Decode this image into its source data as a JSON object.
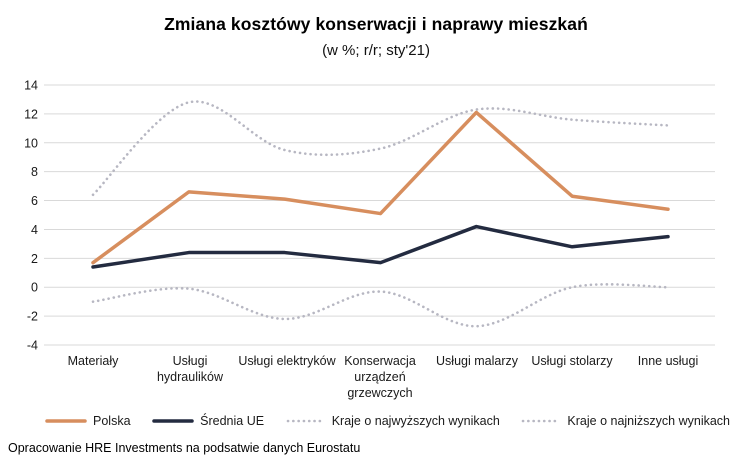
{
  "header": {
    "title": "Zmiana kosztówy konserwacji i naprawy mieszkań",
    "subtitle": "(w %; r/r; sty'21)"
  },
  "chart_data": {
    "type": "line",
    "categories": [
      "Materiały",
      "Usługi hydraulików",
      "Usługi elektryków",
      "Konserwacja urządzeń grzewczych",
      "Usługi malarzy",
      "Usługi stolarzy",
      "Inne usługi"
    ],
    "series": [
      {
        "name": "Polska",
        "color": "#D78E5E",
        "style": "solid",
        "values": [
          1.7,
          6.6,
          6.1,
          5.1,
          12.1,
          6.3,
          5.4
        ]
      },
      {
        "name": "Średnia UE",
        "color": "#232B40",
        "style": "solid",
        "values": [
          1.4,
          2.4,
          2.4,
          1.7,
          4.2,
          2.8,
          3.5
        ]
      },
      {
        "name": "Kraje o najwyższych wynikach",
        "color": "#B7B7C2",
        "style": "dotted",
        "values": [
          6.4,
          12.8,
          9.5,
          9.6,
          12.3,
          11.6,
          11.2
        ]
      },
      {
        "name": "Kraje o najniższych wynikach",
        "color": "#B7B7C2",
        "style": "dotted",
        "values": [
          -1.0,
          -0.1,
          -2.2,
          -0.3,
          -2.7,
          0.0,
          0.0
        ]
      }
    ],
    "ylim": [
      -4,
      14
    ],
    "ytick_step": 2,
    "grid": true,
    "gridline_color": "#D9D9D9",
    "legend_position": "bottom"
  },
  "footer": {
    "source": "Opracowanie HRE Investments na podsatwie danych Eurostatu"
  }
}
